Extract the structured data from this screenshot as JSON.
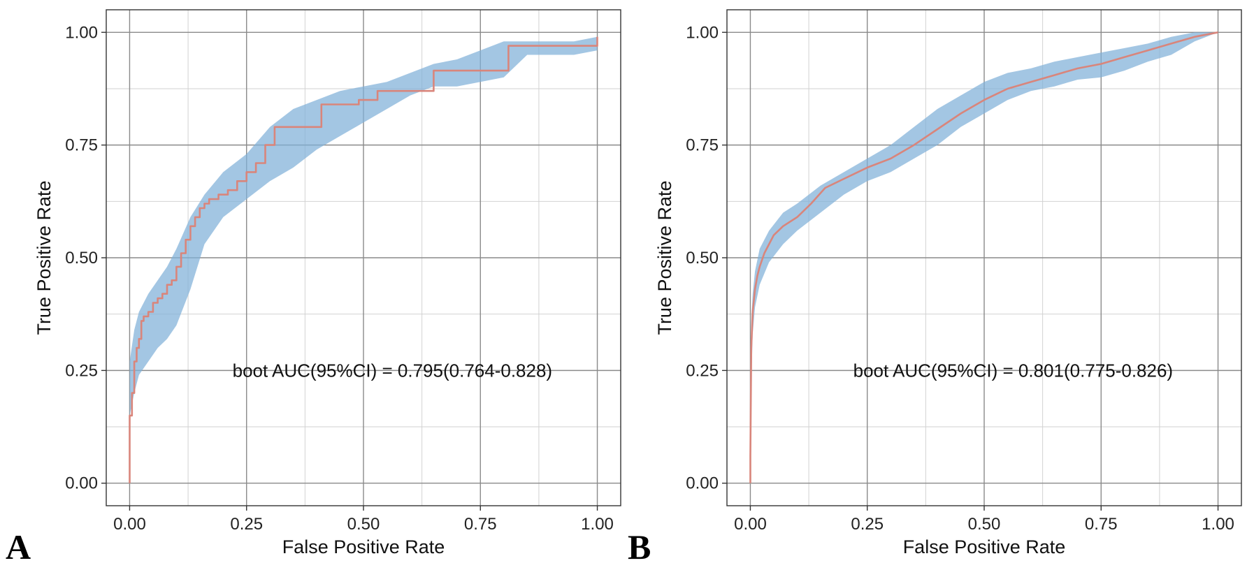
{
  "figure": {
    "panels": [
      "A",
      "B"
    ]
  },
  "colors": {
    "band": "#7fb0d8",
    "line": "#d9857b",
    "major_grid": "#8a8a8a",
    "minor_grid": "#d2d2d2",
    "border": "#333333"
  },
  "chart_data": [
    {
      "type": "line",
      "panel_label": "A",
      "xlabel": "False Positive Rate",
      "ylabel": "True Positive Rate",
      "xlim": [
        -0.05,
        1.05
      ],
      "ylim": [
        -0.05,
        1.05
      ],
      "xticks": [
        0,
        0.25,
        0.5,
        0.75,
        1
      ],
      "xtick_labels": [
        "0.00",
        "0.25",
        "0.50",
        "0.75",
        "1.00"
      ],
      "yticks": [
        0,
        0.25,
        0.5,
        0.75,
        1
      ],
      "ytick_labels": [
        "0.00",
        "0.25",
        "0.50",
        "0.75",
        "1.00"
      ],
      "grid": true,
      "annotation": "boot AUC(95%CI) = 0.795(0.764-0.828)",
      "annotation_pos": [
        0.22,
        0.25
      ],
      "series": [
        {
          "name": "ROC",
          "step": true,
          "x": [
            0,
            0,
            0.005,
            0.01,
            0.015,
            0.02,
            0.025,
            0.03,
            0.04,
            0.05,
            0.06,
            0.07,
            0.08,
            0.09,
            0.1,
            0.11,
            0.12,
            0.13,
            0.14,
            0.15,
            0.16,
            0.17,
            0.19,
            0.21,
            0.23,
            0.25,
            0.27,
            0.29,
            0.31,
            0.33,
            0.37,
            0.41,
            0.45,
            0.49,
            0.53,
            0.57,
            0.65,
            0.81,
            0.85,
            0.9,
            0.95,
            1.0,
            1.0
          ],
          "y": [
            0,
            0.15,
            0.2,
            0.27,
            0.3,
            0.32,
            0.36,
            0.37,
            0.38,
            0.4,
            0.41,
            0.42,
            0.44,
            0.45,
            0.48,
            0.51,
            0.54,
            0.57,
            0.59,
            0.61,
            0.62,
            0.63,
            0.64,
            0.65,
            0.67,
            0.69,
            0.71,
            0.75,
            0.79,
            0.79,
            0.79,
            0.84,
            0.84,
            0.85,
            0.87,
            0.87,
            0.915,
            0.97,
            0.97,
            0.97,
            0.97,
            0.97,
            0.99
          ]
        }
      ],
      "band": {
        "x": [
          0,
          0.01,
          0.02,
          0.04,
          0.06,
          0.08,
          0.1,
          0.13,
          0.16,
          0.2,
          0.25,
          0.3,
          0.35,
          0.4,
          0.45,
          0.5,
          0.55,
          0.6,
          0.65,
          0.7,
          0.75,
          0.8,
          0.85,
          0.9,
          0.95,
          1.0
        ],
        "upper": [
          0.27,
          0.34,
          0.38,
          0.42,
          0.45,
          0.48,
          0.52,
          0.59,
          0.64,
          0.69,
          0.73,
          0.79,
          0.83,
          0.85,
          0.87,
          0.88,
          0.89,
          0.91,
          0.93,
          0.94,
          0.96,
          0.98,
          0.98,
          0.98,
          0.98,
          0.99
        ],
        "lower": [
          0.15,
          0.2,
          0.24,
          0.27,
          0.3,
          0.32,
          0.35,
          0.43,
          0.53,
          0.59,
          0.63,
          0.67,
          0.7,
          0.74,
          0.77,
          0.8,
          0.83,
          0.86,
          0.88,
          0.88,
          0.89,
          0.9,
          0.95,
          0.95,
          0.95,
          0.96
        ]
      }
    },
    {
      "type": "line",
      "panel_label": "B",
      "xlabel": "False Positive Rate",
      "ylabel": "True Positive Rate",
      "xlim": [
        -0.05,
        1.05
      ],
      "ylim": [
        -0.05,
        1.05
      ],
      "xticks": [
        0,
        0.25,
        0.5,
        0.75,
        1
      ],
      "xtick_labels": [
        "0.00",
        "0.25",
        "0.50",
        "0.75",
        "1.00"
      ],
      "yticks": [
        0,
        0.25,
        0.5,
        0.75,
        1
      ],
      "ytick_labels": [
        "0.00",
        "0.25",
        "0.50",
        "0.75",
        "1.00"
      ],
      "grid": true,
      "annotation": "boot AUC(95%CI) = 0.801(0.775-0.826)",
      "annotation_pos": [
        0.22,
        0.25
      ],
      "series": [
        {
          "name": "ROC",
          "step": false,
          "x": [
            0,
            0,
            0.002,
            0.005,
            0.01,
            0.015,
            0.02,
            0.03,
            0.04,
            0.05,
            0.07,
            0.1,
            0.13,
            0.16,
            0.2,
            0.25,
            0.3,
            0.35,
            0.4,
            0.45,
            0.5,
            0.55,
            0.6,
            0.65,
            0.7,
            0.75,
            0.8,
            0.85,
            0.9,
            0.95,
            1.0
          ],
          "y": [
            0,
            0.06,
            0.3,
            0.38,
            0.43,
            0.46,
            0.48,
            0.51,
            0.53,
            0.55,
            0.57,
            0.59,
            0.62,
            0.655,
            0.675,
            0.7,
            0.72,
            0.75,
            0.785,
            0.82,
            0.85,
            0.875,
            0.89,
            0.905,
            0.92,
            0.93,
            0.945,
            0.96,
            0.975,
            0.99,
            1.0
          ]
        }
      ],
      "band": {
        "x": [
          0,
          0.002,
          0.005,
          0.01,
          0.02,
          0.04,
          0.07,
          0.1,
          0.15,
          0.2,
          0.25,
          0.3,
          0.35,
          0.4,
          0.45,
          0.5,
          0.55,
          0.6,
          0.65,
          0.7,
          0.75,
          0.8,
          0.85,
          0.9,
          0.95,
          1.0
        ],
        "upper": [
          0.1,
          0.36,
          0.42,
          0.47,
          0.52,
          0.56,
          0.6,
          0.62,
          0.66,
          0.69,
          0.72,
          0.75,
          0.79,
          0.83,
          0.86,
          0.89,
          0.91,
          0.92,
          0.935,
          0.945,
          0.955,
          0.965,
          0.975,
          0.99,
          1.0,
          1.0
        ],
        "lower": [
          0.02,
          0.22,
          0.33,
          0.39,
          0.44,
          0.49,
          0.53,
          0.56,
          0.6,
          0.64,
          0.67,
          0.69,
          0.72,
          0.75,
          0.79,
          0.82,
          0.85,
          0.87,
          0.88,
          0.895,
          0.9,
          0.915,
          0.935,
          0.95,
          0.98,
          1.0
        ]
      }
    }
  ]
}
